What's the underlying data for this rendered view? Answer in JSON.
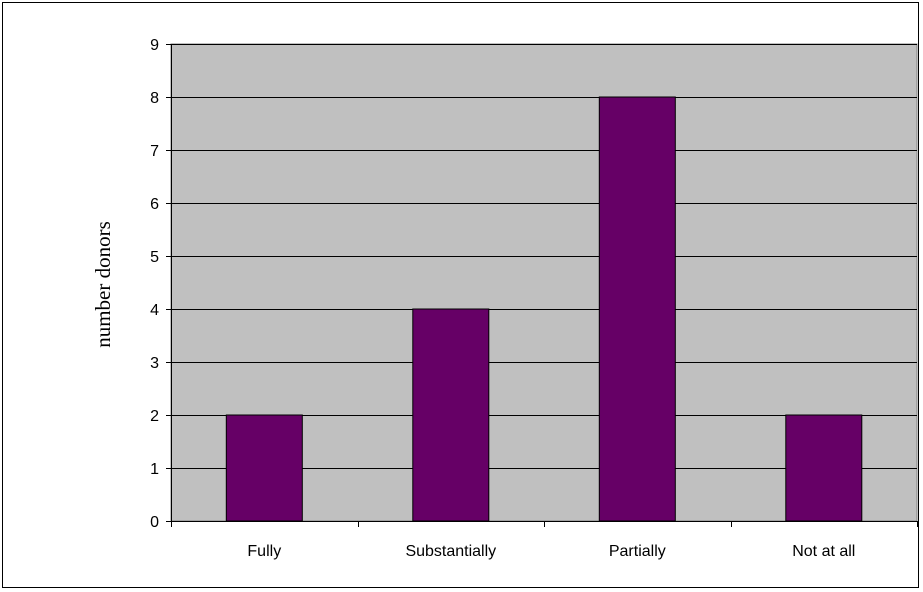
{
  "chart_data": {
    "type": "bar",
    "categories": [
      "Fully",
      "Substantially",
      "Partially",
      "Not at all"
    ],
    "values": [
      2,
      4,
      8,
      2
    ],
    "title": "",
    "xlabel": "",
    "ylabel": "number donors",
    "ylim": [
      0,
      9
    ],
    "yticks": [
      "0",
      "1",
      "2",
      "3",
      "4",
      "5",
      "6",
      "7",
      "8",
      "9"
    ],
    "grid": true,
    "legend": "none",
    "colors": {
      "plot_background": "#c0c0c0",
      "bar_fill": "#660066",
      "bar_stroke": "#000000",
      "gridline": "#000000"
    }
  }
}
